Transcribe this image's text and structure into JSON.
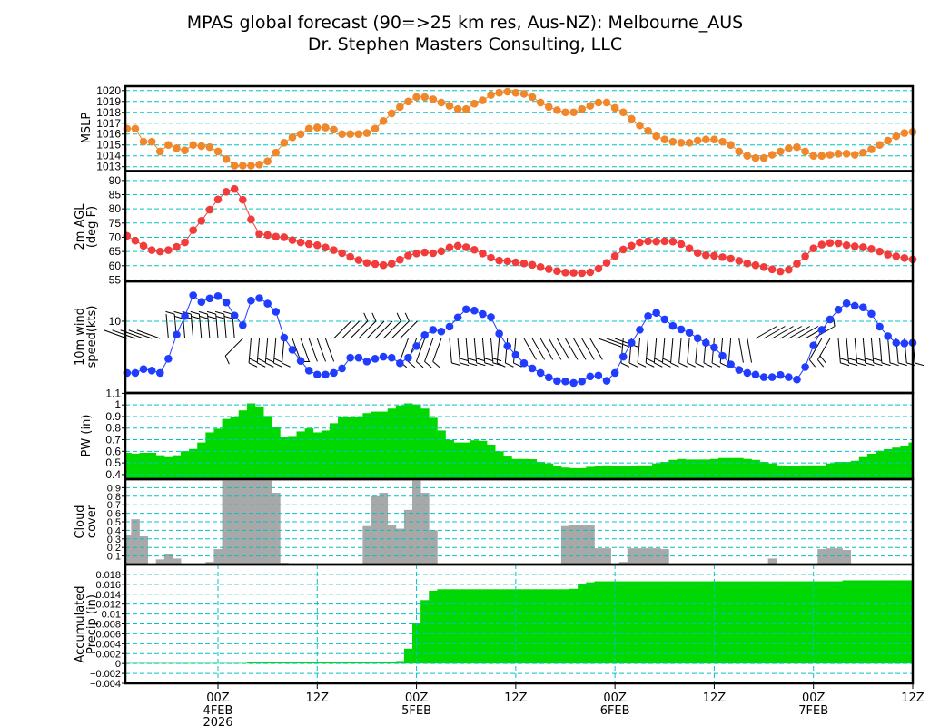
{
  "title": {
    "line1": "MPAS global forecast (90=>25 km res, Aus-NZ): Melbourne_AUS",
    "line2": "Dr. Stephen Masters Consulting, LLC"
  },
  "colors": {
    "mslp": "#f0872a",
    "temp": "#f23c3c",
    "wind": "#1f3cff",
    "pw": "#00d800",
    "cloud": "#a8a8a8",
    "precip": "#00d800",
    "grid": "#00c4c4"
  },
  "x_axis": {
    "units": "hours from 00Z 4FEB 2026",
    "start_hour": -11,
    "step_hours": 1,
    "end_hour": 84,
    "ticks": [
      {
        "hour": 0,
        "time": "00Z",
        "date": "4FEB",
        "year": "2026"
      },
      {
        "hour": 12,
        "time": "12Z"
      },
      {
        "hour": 24,
        "time": "00Z",
        "date": "5FEB"
      },
      {
        "hour": 36,
        "time": "12Z"
      },
      {
        "hour": 48,
        "time": "00Z",
        "date": "6FEB"
      },
      {
        "hour": 60,
        "time": "12Z"
      },
      {
        "hour": 72,
        "time": "00Z",
        "date": "7FEB"
      },
      {
        "hour": 84,
        "time": "12Z"
      }
    ]
  },
  "chart_data": [
    {
      "type": "line",
      "ylabel_lines": [
        "MSLP"
      ],
      "ylim": [
        1012.6,
        1020.4
      ],
      "scale": "linear",
      "yticks": [
        1013,
        1014,
        1015,
        1016,
        1017,
        1018,
        1019,
        1020
      ],
      "ytick_labels": [
        "1013",
        "1014",
        "1015",
        "1016",
        "1017",
        "1018",
        "1019",
        "1020"
      ],
      "values": [
        1016.5,
        1016.5,
        1015.3,
        1015.3,
        1014.4,
        1015,
        1014.7,
        1014.5,
        1015,
        1014.9,
        1014.8,
        1014.4,
        1013.7,
        1013.1,
        1013.1,
        1013.1,
        1013.2,
        1013.5,
        1014.3,
        1015.2,
        1015.7,
        1016,
        1016.5,
        1016.6,
        1016.6,
        1016.4,
        1016,
        1016,
        1016,
        1016.1,
        1016.5,
        1017.2,
        1017.9,
        1018.5,
        1019,
        1019.4,
        1019.4,
        1019.2,
        1018.9,
        1018.6,
        1018.3,
        1018.3,
        1018.8,
        1019.1,
        1019.6,
        1019.8,
        1019.9,
        1019.8,
        1019.7,
        1019.4,
        1018.9,
        1018.5,
        1018.2,
        1018,
        1018,
        1018.3,
        1018.6,
        1018.9,
        1018.9,
        1018.4,
        1018,
        1017.4,
        1016.8,
        1016.3,
        1015.8,
        1015.5,
        1015.3,
        1015.2,
        1015.2,
        1015.4,
        1015.5,
        1015.5,
        1015.3,
        1015,
        1014.4,
        1014,
        1013.8,
        1013.8,
        1014.1,
        1014.4,
        1014.7,
        1014.8,
        1014.4,
        1014,
        1014,
        1014.1,
        1014.2,
        1014.2,
        1014.1,
        1014.3,
        1014.6,
        1015,
        1015.4,
        1015.8,
        1016.1,
        1016.2
      ]
    },
    {
      "type": "line",
      "ylabel_lines": [
        "2m AGL",
        "(deg F)"
      ],
      "ylim": [
        54.5,
        93.3
      ],
      "scale": "linear",
      "yticks": [
        55,
        60,
        65,
        70,
        75,
        80,
        85,
        90
      ],
      "ytick_labels": [
        "55",
        "60",
        "65",
        "70",
        "75",
        "80",
        "85",
        "90"
      ],
      "values": [
        70.5,
        68.8,
        67,
        65.5,
        65,
        65.5,
        66.6,
        68.2,
        72.5,
        75.8,
        79.7,
        83.3,
        86,
        87,
        83.2,
        76.3,
        71.2,
        70.8,
        70.2,
        70,
        69,
        68.2,
        67.6,
        67.2,
        66.4,
        65.5,
        64.4,
        63.1,
        62,
        61,
        60.6,
        60.2,
        60.7,
        62.1,
        63.6,
        64.3,
        64.7,
        64.4,
        65.1,
        66.4,
        67,
        66.5,
        65.6,
        64.3,
        62.8,
        61.8,
        61.6,
        61.2,
        60.8,
        60.3,
        59.5,
        58.8,
        58.1,
        57.6,
        57.5,
        57.4,
        57.7,
        59,
        61,
        63.4,
        65.7,
        67,
        68.2,
        68.6,
        68.5,
        68.6,
        68.5,
        67.6,
        66.1,
        64.5,
        63.7,
        63.5,
        63,
        62.5,
        61.7,
        60.8,
        60.2,
        59.5,
        58.7,
        58,
        58.6,
        60.7,
        63.3,
        66.1,
        67.4,
        68,
        67.9,
        67.2,
        66.8,
        66.5,
        65.9,
        65,
        63.9,
        63.3,
        62.7,
        62.2
      ]
    },
    {
      "type": "line",
      "ylabel_lines": [
        "10m wind",
        "speed(kts)"
      ],
      "ylim": [
        1,
        36
      ],
      "scale": "log",
      "yticks": [
        10
      ],
      "ytick_labels": [
        "10"
      ],
      "values": [
        1.9,
        1.9,
        2.15,
        2.05,
        1.9,
        3.0,
        6.5,
        11.8,
        23,
        18.6,
        20.8,
        22.4,
        18.3,
        12,
        8.8,
        19.4,
        21,
        17.6,
        13.6,
        5.9,
        4.0,
        2.8,
        2.05,
        1.8,
        1.8,
        1.9,
        2.2,
        3.1,
        3.1,
        2.75,
        3.0,
        3.2,
        3.1,
        2.6,
        3.1,
        4.5,
        6.4,
        7.6,
        7.2,
        8.4,
        11.3,
        14.7,
        14.1,
        12.6,
        11.4,
        6.7,
        4.5,
        3.4,
        2.6,
        2.2,
        1.9,
        1.65,
        1.47,
        1.45,
        1.38,
        1.45,
        1.7,
        1.75,
        1.48,
        1.9,
        3.2,
        5.0,
        7.6,
        11.8,
        13.1,
        10.6,
        8.6,
        7.7,
        6.9,
        5.8,
        5.0,
        4.3,
        3.3,
        2.5,
        2.1,
        1.9,
        1.8,
        1.66,
        1.66,
        1.78,
        1.66,
        1.54,
        2.3,
        4.6,
        7.6,
        10.6,
        14.5,
        17.8,
        16.4,
        15.6,
        12.7,
        8.4,
        6.2,
        5.0,
        4.9,
        5.0
      ],
      "wind_dir_deg": [
        290,
        290,
        290,
        290,
        290,
        355,
        355,
        355,
        355,
        355,
        355,
        355,
        355,
        355,
        225,
        185,
        185,
        185,
        185,
        185,
        160,
        160,
        160,
        160,
        160,
        45,
        45,
        45,
        45,
        45,
        45,
        45,
        45,
        45,
        200,
        200,
        200,
        200,
        200,
        175,
        175,
        175,
        175,
        175,
        175,
        185,
        185,
        185,
        150,
        150,
        150,
        150,
        150,
        150,
        150,
        150,
        150,
        110,
        110,
        110,
        185,
        185,
        185,
        185,
        185,
        185,
        185,
        185,
        185,
        185,
        185,
        185,
        185,
        185,
        170,
        170,
        60,
        60,
        60,
        60,
        60,
        60,
        60,
        60,
        210,
        210,
        175,
        175,
        175,
        175,
        175,
        175,
        175,
        175,
        175,
        175
      ]
    },
    {
      "type": "bar",
      "ylabel_lines": [
        "PW (in)"
      ],
      "ylim": [
        0.36,
        1.103
      ],
      "scale": "linear",
      "yticks": [
        0.4,
        0.5,
        0.6,
        0.7,
        0.8,
        0.9,
        1.0,
        1.1
      ],
      "ytick_labels": [
        "0.4",
        "0.5",
        "0.6",
        "0.7",
        "0.8",
        "0.9",
        "1",
        "1.1"
      ],
      "values": [
        0.587,
        0.58,
        0.587,
        0.587,
        0.566,
        0.55,
        0.566,
        0.6,
        0.62,
        0.676,
        0.763,
        0.795,
        0.879,
        0.895,
        0.953,
        1.013,
        0.987,
        0.905,
        0.808,
        0.721,
        0.732,
        0.771,
        0.797,
        0.763,
        0.779,
        0.842,
        0.892,
        0.897,
        0.897,
        0.929,
        0.942,
        0.942,
        0.968,
        0.995,
        1.013,
        1.005,
        0.968,
        0.889,
        0.779,
        0.697,
        0.676,
        0.676,
        0.695,
        0.69,
        0.658,
        0.6,
        0.555,
        0.534,
        0.534,
        0.532,
        0.508,
        0.495,
        0.471,
        0.46,
        0.455,
        0.455,
        0.466,
        0.471,
        0.479,
        0.471,
        0.471,
        0.471,
        0.479,
        0.479,
        0.495,
        0.508,
        0.526,
        0.534,
        0.529,
        0.529,
        0.529,
        0.534,
        0.542,
        0.542,
        0.542,
        0.534,
        0.526,
        0.508,
        0.495,
        0.479,
        0.471,
        0.471,
        0.479,
        0.479,
        0.479,
        0.495,
        0.508,
        0.508,
        0.518,
        0.55,
        0.579,
        0.605,
        0.618,
        0.632,
        0.65,
        0.676
      ]
    },
    {
      "type": "bar",
      "ylabel_lines": [
        "Cloud",
        "cover"
      ],
      "ylim": [
        0,
        1.0
      ],
      "scale": "linear",
      "yticks": [
        0.1,
        0.2,
        0.3,
        0.4,
        0.5,
        0.6,
        0.7,
        0.8,
        0.9
      ],
      "ytick_labels": [
        "0.1",
        "0.2",
        "0.3",
        "0.4",
        "0.5",
        "0.6",
        "0.7",
        "0.8",
        "0.9"
      ],
      "values": [
        0.34,
        0.53,
        0.33,
        0.01,
        0.06,
        0.12,
        0.07,
        0,
        0,
        0,
        0.03,
        0.18,
        1,
        1,
        1,
        1,
        1,
        1,
        0.84,
        0.02,
        0,
        0,
        0,
        0,
        0,
        0,
        0,
        0,
        0,
        0.45,
        0.8,
        0.84,
        0.46,
        0.42,
        0.64,
        1,
        0.84,
        0.4,
        0,
        0,
        0,
        0,
        0,
        0,
        0,
        0,
        0,
        0,
        0,
        0,
        0,
        0,
        0,
        0.45,
        0.46,
        0.46,
        0.46,
        0.19,
        0.19,
        0,
        0.03,
        0.19,
        0.19,
        0.19,
        0.19,
        0.18,
        0,
        0,
        0,
        0,
        0,
        0,
        0,
        0,
        0,
        0,
        0,
        0,
        0.07,
        0,
        0,
        0,
        0,
        0,
        0.18,
        0.19,
        0.19,
        0.17,
        0,
        0,
        0,
        0,
        0,
        0,
        0,
        0
      ]
    },
    {
      "type": "bar",
      "ylabel_lines": [
        "Accumulated",
        "Precip (in)"
      ],
      "ylim": [
        -0.004,
        0.02
      ],
      "scale": "linear",
      "yticks": [
        -0.004,
        -0.002,
        0,
        0.002,
        0.004,
        0.006,
        0.008,
        0.01,
        0.012,
        0.014,
        0.016,
        0.018
      ],
      "ytick_labels": [
        "−0.004",
        "−0.002",
        "0",
        "0.002",
        "0.004",
        "0.006",
        "0.008",
        "0.01",
        "0.012",
        "0.014",
        "0.016",
        "0.018"
      ],
      "values": [
        0.0001,
        0.0001,
        0.0001,
        0.0001,
        0.0001,
        0.0001,
        0.0001,
        0.0001,
        0.0001,
        0.0001,
        0.0001,
        0.0001,
        0.0001,
        0.0001,
        0.0001,
        0.0003,
        0.0003,
        0.0003,
        0.0003,
        0.0003,
        0.0003,
        0.0003,
        0.0003,
        0.0003,
        0.0003,
        0.0003,
        0.0003,
        0.0003,
        0.0003,
        0.0003,
        0.0003,
        0.0003,
        0.0003,
        0.0005,
        0.003,
        0.0082,
        0.0128,
        0.0147,
        0.015,
        0.015,
        0.015,
        0.015,
        0.015,
        0.015,
        0.015,
        0.015,
        0.015,
        0.015,
        0.015,
        0.015,
        0.015,
        0.015,
        0.015,
        0.015,
        0.0151,
        0.016,
        0.0164,
        0.0166,
        0.0166,
        0.0166,
        0.0166,
        0.0166,
        0.0166,
        0.0166,
        0.0166,
        0.0166,
        0.0166,
        0.0166,
        0.0166,
        0.0166,
        0.0166,
        0.0166,
        0.0166,
        0.0166,
        0.0166,
        0.0166,
        0.0166,
        0.0166,
        0.0166,
        0.0166,
        0.0166,
        0.0166,
        0.0166,
        0.0166,
        0.0166,
        0.0166,
        0.0166,
        0.0168,
        0.0168,
        0.0168,
        0.0168,
        0.0168,
        0.0168,
        0.0168,
        0.0168,
        0.0168
      ]
    }
  ]
}
